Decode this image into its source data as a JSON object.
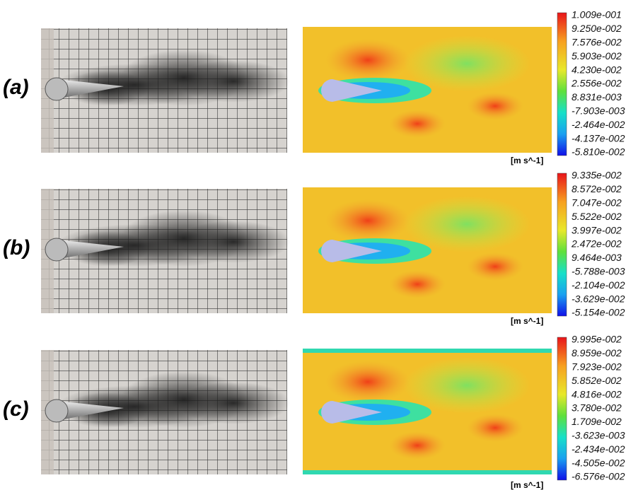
{
  "panels": [
    {
      "label": "(a)",
      "unit": "[m s^-1]",
      "colorbar": [
        "1.009e-001",
        "9.250e-002",
        "7.576e-002",
        "5.903e-002",
        "4.230e-002",
        "2.556e-002",
        "8.831e-003",
        "-7.903e-003",
        "-2.464e-002",
        "-4.137e-002",
        "-5.810e-002"
      ]
    },
    {
      "label": "(b)",
      "unit": "[m s^-1]",
      "colorbar": [
        "9.335e-002",
        "8.572e-002",
        "7.047e-002",
        "5.522e-002",
        "3.997e-002",
        "2.472e-002",
        "9.464e-003",
        "-5.788e-003",
        "-2.104e-002",
        "-3.629e-002",
        "-5.154e-002"
      ]
    },
    {
      "label": "(c)",
      "unit": "[m s^-1]",
      "colorbar": [
        "9.995e-002",
        "8.959e-002",
        "7.923e-002",
        "5.852e-002",
        "4.816e-002",
        "3.780e-002",
        "1.709e-002",
        "-3.623e-003",
        "-2.434e-002",
        "-4.505e-002",
        "-6.576e-002"
      ]
    }
  ]
}
